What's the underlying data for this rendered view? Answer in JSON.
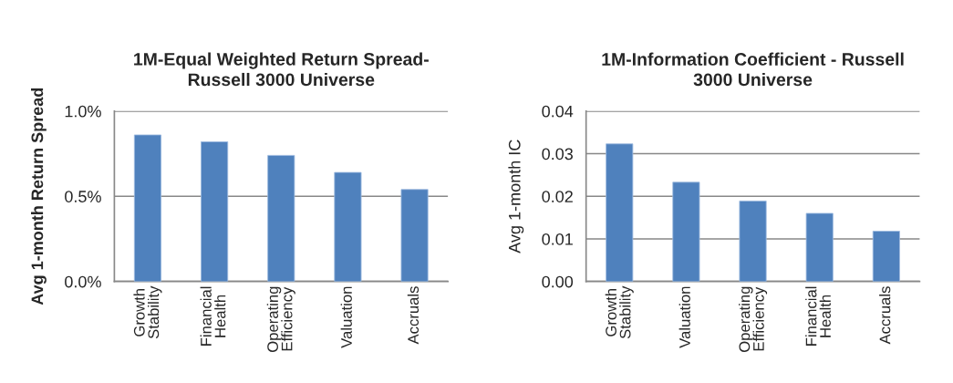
{
  "chart_data": [
    {
      "type": "bar",
      "title": "1M-Equal Weighted Return Spread-\nRussell 3000 Universe",
      "ylabel": "Avg 1-month Return Spread",
      "categories": [
        "Growth Stability",
        "Financial Health",
        "Operating Efficiency",
        "Valuation",
        "Accruals"
      ],
      "values": [
        0.86,
        0.82,
        0.74,
        0.64,
        0.54
      ],
      "color": "#4f81bd",
      "ylim": [
        0,
        1.0
      ],
      "yticks": [
        {
          "value": 0,
          "label": "0.0%"
        },
        {
          "value": 0.5,
          "label": "0.5%"
        },
        {
          "value": 1.0,
          "label": "1.0%"
        }
      ],
      "grid": "y",
      "legend": false
    },
    {
      "type": "bar",
      "title": "1M-Information Coefficient - Russell\n3000 Universe",
      "ylabel": "Avg 1-month IC",
      "categories": [
        "Growth Stability",
        "Valuation",
        "Operating Efficiency",
        "Financial Health",
        "Accruals"
      ],
      "values": [
        0.0323,
        0.0233,
        0.0189,
        0.016,
        0.0118
      ],
      "color": "#4f81bd",
      "ylim": [
        0,
        0.04
      ],
      "yticks": [
        {
          "value": 0,
          "label": "0.00"
        },
        {
          "value": 0.01,
          "label": "0.01"
        },
        {
          "value": 0.02,
          "label": "0.02"
        },
        {
          "value": 0.03,
          "label": "0.03"
        },
        {
          "value": 0.04,
          "label": "0.04"
        }
      ],
      "grid": "y",
      "legend": false
    }
  ]
}
